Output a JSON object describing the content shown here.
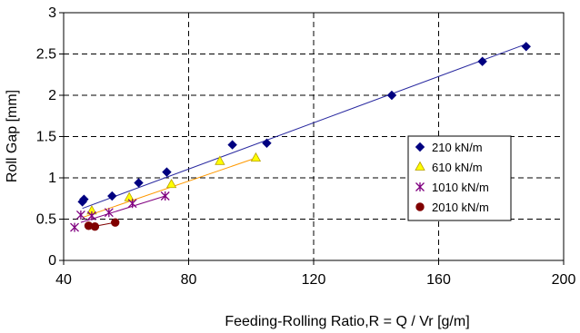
{
  "chart_data": {
    "type": "scatter",
    "xlabel": "Feeding-Rolling Ratio,R = Q / Vr [g/m]",
    "ylabel": "Roll Gap [mm]",
    "xlim": [
      40,
      200
    ],
    "ylim": [
      0,
      3
    ],
    "xticks": [
      40,
      80,
      120,
      160,
      200
    ],
    "yticks": [
      0,
      0.5,
      1,
      1.5,
      2,
      2.5,
      3
    ],
    "xtick_labels": [
      "40",
      "80",
      "120",
      "160",
      "200"
    ],
    "ytick_labels": [
      "0",
      "0.5",
      "1",
      "1.5",
      "2",
      "2.5",
      "3"
    ],
    "grid": "dashed",
    "legend_position": "center-right",
    "series": [
      {
        "name": "210 kN/m",
        "marker": "diamond",
        "color": "#000080",
        "line_color": "#2a2aa0",
        "points": [
          [
            46,
            0.71
          ],
          [
            46.5,
            0.74
          ],
          [
            55.5,
            0.78
          ],
          [
            64,
            0.94
          ],
          [
            73,
            1.07
          ],
          [
            94,
            1.4
          ],
          [
            105,
            1.42
          ],
          [
            145,
            2.0
          ],
          [
            174,
            2.41
          ],
          [
            188,
            2.59
          ]
        ],
        "fit": [
          [
            46,
            0.63
          ],
          [
            188,
            2.62
          ]
        ]
      },
      {
        "name": "610 kN/m",
        "marker": "triangle",
        "color": "#ffff00",
        "line_color": "#ff9900",
        "points": [
          [
            49,
            0.6
          ],
          [
            61,
            0.76
          ],
          [
            74.5,
            0.92
          ],
          [
            90,
            1.2
          ],
          [
            101.5,
            1.24
          ]
        ],
        "fit": [
          [
            46,
            0.52
          ],
          [
            101.5,
            1.24
          ]
        ]
      },
      {
        "name": "1010 kN/m",
        "marker": "star",
        "color": "#800080",
        "line_color": "#800080",
        "points": [
          [
            43.5,
            0.4
          ],
          [
            45.5,
            0.55
          ],
          [
            49,
            0.54
          ],
          [
            54.5,
            0.58
          ],
          [
            62,
            0.69
          ],
          [
            72.5,
            0.78
          ]
        ],
        "fit": [
          [
            45.5,
            0.46
          ],
          [
            72.5,
            0.78
          ]
        ]
      },
      {
        "name": "2010 kN/m",
        "marker": "circle",
        "color": "#800000",
        "line_color": "#800000",
        "points": [
          [
            48,
            0.42
          ],
          [
            50,
            0.41
          ],
          [
            56.5,
            0.46
          ]
        ],
        "fit": [
          [
            48,
            0.4
          ],
          [
            56.5,
            0.46
          ]
        ]
      }
    ]
  }
}
